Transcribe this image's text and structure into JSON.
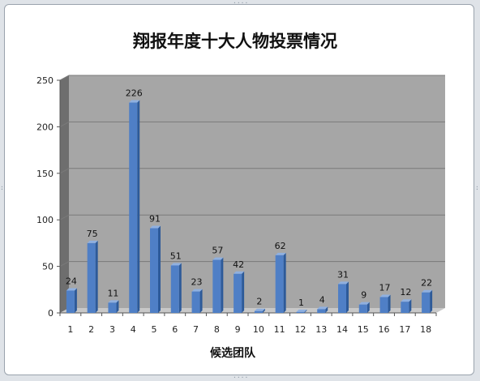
{
  "chart_data": {
    "type": "bar",
    "title": "翔报年度十大人物投票情况",
    "xlabel": "候选团队",
    "ylabel": "",
    "categories": [
      "1",
      "2",
      "3",
      "4",
      "5",
      "6",
      "7",
      "8",
      "9",
      "10",
      "11",
      "12",
      "13",
      "14",
      "15",
      "16",
      "17",
      "18"
    ],
    "values": [
      24,
      75,
      11,
      226,
      91,
      51,
      23,
      57,
      42,
      2,
      62,
      1,
      4,
      31,
      9,
      17,
      12,
      22
    ],
    "ylim": [
      0,
      250
    ],
    "yticks": [
      "0",
      "50",
      "100",
      "150",
      "200",
      "250"
    ],
    "grid": true,
    "legend": "none",
    "colors": {
      "bar_front": "#4f7fc6",
      "bar_side": "#2d5a99",
      "bar_top": "#8fb0e0",
      "plot_back": "#a6a6a6",
      "plot_floor": "#c8c8c8",
      "plot_side": "#6e6e6e",
      "gridline": "#7a7a7a"
    }
  }
}
